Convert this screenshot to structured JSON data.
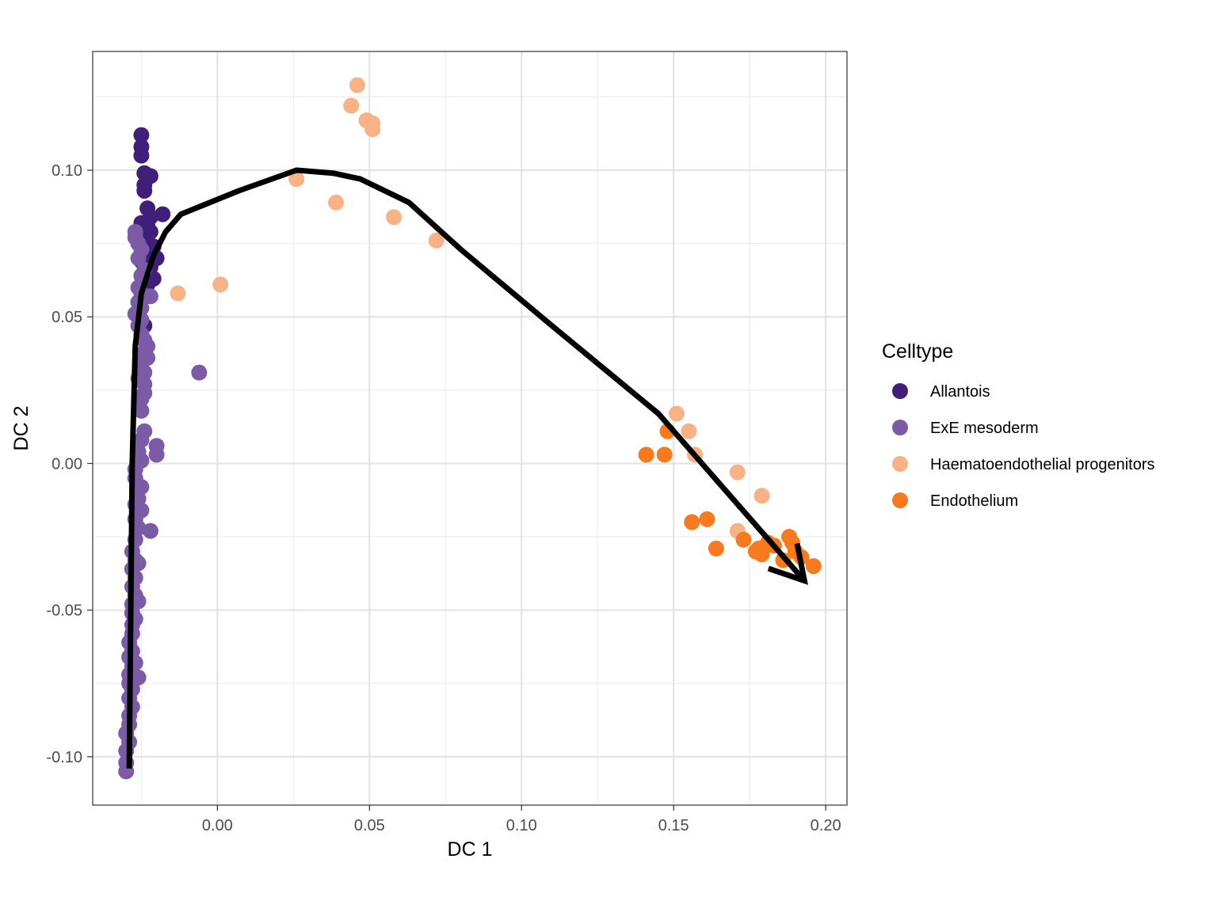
{
  "chart_data": {
    "type": "scatter",
    "xlabel": "DC 1",
    "ylabel": "DC 2",
    "xlim": [
      -0.041,
      0.207
    ],
    "ylim": [
      -0.1165,
      0.1405
    ],
    "x_ticks": [
      0.0,
      0.05,
      0.1,
      0.15,
      0.2
    ],
    "x_tick_labels": [
      "0.00",
      "0.05",
      "0.10",
      "0.15",
      "0.20"
    ],
    "y_ticks": [
      -0.1,
      -0.05,
      0.0,
      0.05,
      0.1
    ],
    "y_tick_labels": [
      "-0.10",
      "-0.05",
      "0.00",
      "0.05",
      "0.10"
    ],
    "grid": true,
    "legend": {
      "title": "Celltype",
      "placement": "right",
      "entries": [
        {
          "name": "Allantois",
          "color": "#3f1f7a"
        },
        {
          "name": "ExE mesoderm",
          "color": "#7b5ba6"
        },
        {
          "name": "Haematoendothelial progenitors",
          "color": "#f9b285"
        },
        {
          "name": "Endothelium",
          "color": "#f77a1f"
        }
      ]
    },
    "series": [
      {
        "name": "Allantois",
        "color": "#3f1f7a",
        "points": [
          [
            -0.025,
            0.112
          ],
          [
            -0.025,
            0.108
          ],
          [
            -0.025,
            0.105
          ],
          [
            -0.024,
            0.099
          ],
          [
            -0.022,
            0.098
          ],
          [
            -0.024,
            0.095
          ],
          [
            -0.024,
            0.093
          ],
          [
            -0.023,
            0.087
          ],
          [
            -0.018,
            0.085
          ],
          [
            -0.022,
            0.084
          ],
          [
            -0.025,
            0.082
          ],
          [
            -0.023,
            0.081
          ],
          [
            -0.022,
            0.079
          ],
          [
            -0.023,
            0.076
          ],
          [
            -0.021,
            0.074
          ],
          [
            -0.024,
            0.072
          ],
          [
            -0.022,
            0.071
          ],
          [
            -0.02,
            0.07
          ],
          [
            -0.025,
            0.069
          ],
          [
            -0.022,
            0.067
          ],
          [
            -0.021,
            0.063
          ],
          [
            -0.023,
            0.061
          ],
          [
            -0.024,
            0.058
          ],
          [
            -0.024,
            0.047
          ],
          [
            -0.026,
            0.055
          ]
        ]
      },
      {
        "name": "ExE mesoderm",
        "color": "#7b5ba6",
        "points": [
          [
            -0.027,
            0.079
          ],
          [
            -0.027,
            0.077
          ],
          [
            -0.026,
            0.075
          ],
          [
            -0.025,
            0.073
          ],
          [
            -0.026,
            0.07
          ],
          [
            -0.024,
            0.066
          ],
          [
            -0.025,
            0.064
          ],
          [
            -0.026,
            0.06
          ],
          [
            -0.025,
            0.058
          ],
          [
            -0.022,
            0.057
          ],
          [
            -0.026,
            0.055
          ],
          [
            -0.025,
            0.053
          ],
          [
            -0.027,
            0.051
          ],
          [
            -0.025,
            0.049
          ],
          [
            -0.026,
            0.047
          ],
          [
            -0.025,
            0.044
          ],
          [
            -0.024,
            0.042
          ],
          [
            -0.023,
            0.04
          ],
          [
            -0.024,
            0.038
          ],
          [
            -0.023,
            0.036
          ],
          [
            -0.025,
            0.034
          ],
          [
            -0.024,
            0.031
          ],
          [
            -0.026,
            0.029
          ],
          [
            -0.024,
            0.027
          ],
          [
            -0.024,
            0.024
          ],
          [
            -0.025,
            0.022
          ],
          [
            -0.025,
            0.018
          ],
          [
            -0.006,
            0.031
          ],
          [
            -0.024,
            0.011
          ],
          [
            -0.025,
            0.008
          ],
          [
            -0.02,
            0.006
          ],
          [
            -0.02,
            0.003
          ],
          [
            -0.026,
            0.004
          ],
          [
            -0.025,
            0.001
          ],
          [
            -0.027,
            -0.002
          ],
          [
            -0.027,
            -0.005
          ],
          [
            -0.025,
            -0.008
          ],
          [
            -0.026,
            -0.012
          ],
          [
            -0.027,
            -0.014
          ],
          [
            -0.025,
            -0.016
          ],
          [
            -0.027,
            -0.019
          ],
          [
            -0.022,
            -0.023
          ],
          [
            -0.026,
            -0.022
          ],
          [
            -0.027,
            -0.026
          ],
          [
            -0.028,
            -0.03
          ],
          [
            -0.027,
            -0.033
          ],
          [
            -0.028,
            -0.036
          ],
          [
            -0.027,
            -0.039
          ],
          [
            -0.028,
            -0.042
          ],
          [
            -0.027,
            -0.045
          ],
          [
            -0.028,
            -0.048
          ],
          [
            -0.028,
            -0.051
          ],
          [
            -0.027,
            -0.053
          ],
          [
            -0.028,
            -0.055
          ],
          [
            -0.028,
            -0.058
          ],
          [
            -0.029,
            -0.061
          ],
          [
            -0.028,
            -0.064
          ],
          [
            -0.029,
            -0.066
          ],
          [
            -0.028,
            -0.069
          ],
          [
            -0.029,
            -0.072
          ],
          [
            -0.029,
            -0.075
          ],
          [
            -0.028,
            -0.077
          ],
          [
            -0.029,
            -0.08
          ],
          [
            -0.028,
            -0.083
          ],
          [
            -0.029,
            -0.086
          ],
          [
            -0.029,
            -0.089
          ],
          [
            -0.03,
            -0.092
          ],
          [
            -0.029,
            -0.095
          ],
          [
            -0.03,
            -0.098
          ],
          [
            -0.03,
            -0.102
          ],
          [
            -0.03,
            -0.105
          ],
          [
            -0.026,
            -0.073
          ],
          [
            -0.027,
            -0.068
          ],
          [
            -0.026,
            -0.047
          ],
          [
            -0.026,
            -0.034
          ]
        ]
      },
      {
        "name": "Haematoendothelial progenitors",
        "color": "#f9b285",
        "points": [
          [
            0.046,
            0.129
          ],
          [
            0.044,
            0.122
          ],
          [
            0.049,
            0.117
          ],
          [
            0.051,
            0.116
          ],
          [
            0.051,
            0.114
          ],
          [
            0.026,
            0.097
          ],
          [
            0.039,
            0.089
          ],
          [
            0.058,
            0.084
          ],
          [
            0.072,
            0.076
          ],
          [
            0.001,
            0.061
          ],
          [
            -0.013,
            0.058
          ],
          [
            0.151,
            0.017
          ],
          [
            0.155,
            0.011
          ],
          [
            0.157,
            0.003
          ],
          [
            0.171,
            -0.003
          ],
          [
            0.179,
            -0.011
          ],
          [
            0.171,
            -0.023
          ]
        ]
      },
      {
        "name": "Endothelium",
        "color": "#f77a1f",
        "points": [
          [
            0.148,
            0.011
          ],
          [
            0.141,
            0.003
          ],
          [
            0.147,
            0.003
          ],
          [
            0.156,
            -0.02
          ],
          [
            0.161,
            -0.019
          ],
          [
            0.164,
            -0.029
          ],
          [
            0.173,
            -0.026
          ],
          [
            0.178,
            -0.029
          ],
          [
            0.181,
            -0.027
          ],
          [
            0.177,
            -0.03
          ],
          [
            0.179,
            -0.031
          ],
          [
            0.188,
            -0.025
          ],
          [
            0.189,
            -0.027
          ],
          [
            0.19,
            -0.03
          ],
          [
            0.192,
            -0.032
          ],
          [
            0.186,
            -0.033
          ],
          [
            0.196,
            -0.035
          ],
          [
            0.183,
            -0.028
          ]
        ]
      }
    ],
    "trajectory": [
      [
        -0.029,
        -0.104
      ],
      [
        -0.028,
        0.0
      ],
      [
        -0.027,
        0.04
      ],
      [
        -0.025,
        0.058
      ],
      [
        -0.021,
        0.071
      ],
      [
        -0.017,
        0.079
      ],
      [
        -0.012,
        0.085
      ],
      [
        0.007,
        0.093
      ],
      [
        0.026,
        0.1
      ],
      [
        0.038,
        0.099
      ],
      [
        0.047,
        0.097
      ],
      [
        0.063,
        0.089
      ],
      [
        0.08,
        0.073
      ],
      [
        0.11,
        0.047
      ],
      [
        0.145,
        0.017
      ],
      [
        0.193,
        -0.04
      ]
    ]
  }
}
